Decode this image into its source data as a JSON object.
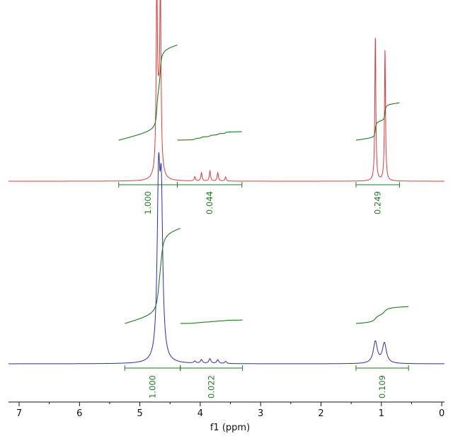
{
  "chart_data": {
    "type": "line",
    "title": "",
    "xlabel": "f1 (ppm)",
    "ylabel": "",
    "xlim": [
      7.1,
      -0.1
    ],
    "x_reversed": true,
    "x_ticks": [
      "7",
      "6",
      "5",
      "4",
      "3",
      "2",
      "1",
      "0"
    ],
    "grid": false,
    "colors": {
      "top_spectrum": "#e03a3a",
      "bottom_spectrum": "#2b2bb8",
      "integral": "#1d7a1d",
      "axis": "#111111"
    },
    "spectra": [
      {
        "peaks": [
          {
            "ppm": 4.72,
            "height": 1.0,
            "width": 0.012
          },
          {
            "ppm": 4.66,
            "height": 1.0,
            "width": 0.012
          },
          {
            "ppm": 4.69,
            "height": 0.35,
            "width": 0.03
          },
          {
            "ppm": 4.09,
            "height": 0.025,
            "width": 0.012
          },
          {
            "ppm": 3.98,
            "height": 0.05,
            "width": 0.012
          },
          {
            "ppm": 3.84,
            "height": 0.06,
            "width": 0.012
          },
          {
            "ppm": 3.71,
            "height": 0.05,
            "width": 0.012
          },
          {
            "ppm": 3.58,
            "height": 0.025,
            "width": 0.012
          },
          {
            "ppm": 1.1,
            "height": 0.86,
            "width": 0.01
          },
          {
            "ppm": 0.94,
            "height": 0.78,
            "width": 0.01
          }
        ],
        "integrals": [
          {
            "from": 5.35,
            "to": 4.38,
            "value": "1.000",
            "curve_rise": 0.56
          },
          {
            "from": 4.38,
            "to": 3.31,
            "value": "0.044",
            "curve_rise": 0.05
          },
          {
            "from": 1.42,
            "to": 0.7,
            "value": "0.249",
            "curve_rise": 0.22
          }
        ]
      },
      {
        "peaks": [
          {
            "ppm": 4.69,
            "height": 1.0,
            "width": 0.028
          },
          {
            "ppm": 4.645,
            "height": 0.9,
            "width": 0.028
          },
          {
            "ppm": 4.09,
            "height": 0.012,
            "width": 0.02
          },
          {
            "ppm": 3.98,
            "height": 0.022,
            "width": 0.02
          },
          {
            "ppm": 3.84,
            "height": 0.028,
            "width": 0.02
          },
          {
            "ppm": 3.71,
            "height": 0.022,
            "width": 0.02
          },
          {
            "ppm": 3.58,
            "height": 0.012,
            "width": 0.02
          },
          {
            "ppm": 1.1,
            "height": 0.13,
            "width": 0.04
          },
          {
            "ppm": 0.95,
            "height": 0.12,
            "width": 0.04
          }
        ],
        "integrals": [
          {
            "from": 5.25,
            "to": 4.33,
            "value": "1.000",
            "curve_rise": 0.56
          },
          {
            "from": 4.33,
            "to": 3.3,
            "value": "0.022",
            "curve_rise": 0.02
          },
          {
            "from": 1.42,
            "to": 0.55,
            "value": "0.109",
            "curve_rise": 0.1
          }
        ]
      }
    ]
  }
}
